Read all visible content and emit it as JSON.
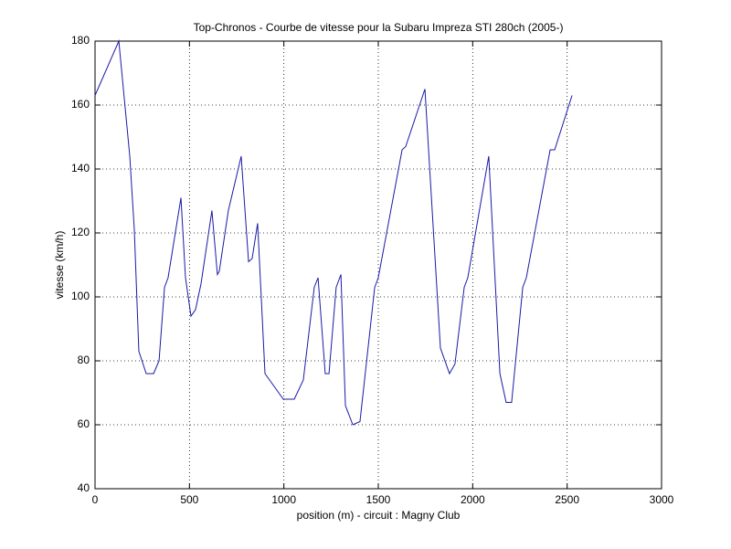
{
  "chart_data": {
    "type": "line",
    "title": "Top-Chronos - Courbe de vitesse pour la Subaru Impreza STI 280ch (2005-)",
    "x_label": "position (m) - circuit : Magny Club",
    "y_label": "vitesse (km/h)",
    "x": [
      0,
      126,
      184,
      208,
      232,
      271,
      310,
      339,
      368,
      387,
      455,
      479,
      508,
      532,
      561,
      619,
      648,
      658,
      706,
      774,
      813,
      832,
      861,
      900,
      997,
      1055,
      1103,
      1161,
      1181,
      1219,
      1239,
      1277,
      1302,
      1326,
      1365,
      1403,
      1481,
      1500,
      1626,
      1645,
      1747,
      1829,
      1877,
      1906,
      1955,
      1974,
      2085,
      2144,
      2177,
      2206,
      2265,
      2284,
      2410,
      2434,
      2526
    ],
    "values": [
      163,
      180,
      144,
      121,
      83,
      76,
      76,
      80,
      103,
      106,
      131,
      106,
      94,
      96,
      104,
      127,
      107,
      108,
      127,
      144,
      111,
      112,
      123,
      76,
      68,
      68,
      74,
      103,
      106,
      76,
      76,
      103,
      107,
      66,
      60,
      61,
      103,
      106,
      146,
      147,
      165,
      84,
      76,
      79,
      103,
      106,
      144,
      76,
      67,
      67,
      103,
      106,
      146,
      146,
      163
    ],
    "color": "#1a1aa6",
    "xlim": [
      0,
      3000
    ],
    "xticks": [
      0,
      500,
      1000,
      1500,
      2000,
      2500,
      3000
    ],
    "ylim": [
      40,
      180
    ],
    "yticks": [
      40,
      60,
      80,
      100,
      120,
      140,
      160,
      180
    ],
    "grid": true
  }
}
